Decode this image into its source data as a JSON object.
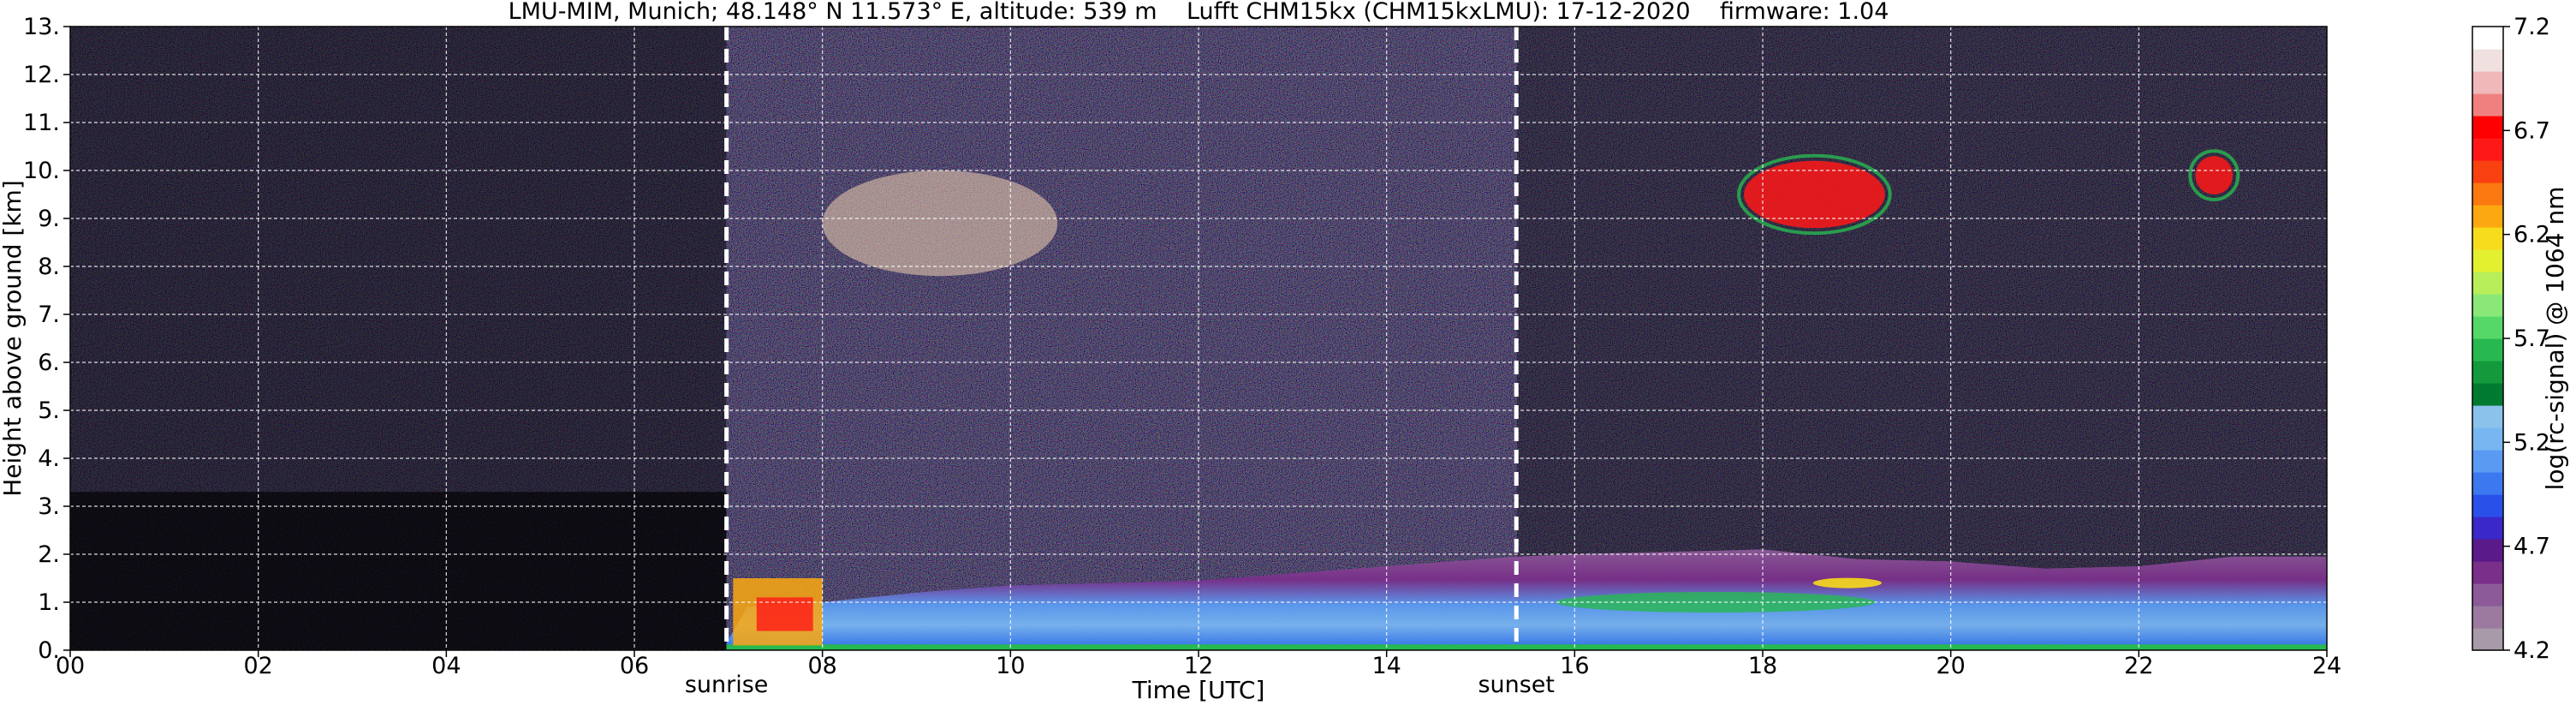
{
  "chart_data": {
    "type": "heatmap",
    "title": "LMU-MIM, Munich; 48.148° N 11.573° E, altitude: 539 m    Lufft CHM15kx (CHM15kxLMU): 17-12-2020    firmware: 1.04",
    "xlabel": "Time [UTC]",
    "ylabel": "Height above ground [km]",
    "xlim": [
      0,
      24
    ],
    "ylim": [
      0,
      13
    ],
    "x_ticks": [
      "00",
      "02",
      "04",
      "06",
      "08",
      "10",
      "12",
      "14",
      "16",
      "18",
      "20",
      "22",
      "24"
    ],
    "x_tick_values": [
      0,
      2,
      4,
      6,
      8,
      10,
      12,
      14,
      16,
      18,
      20,
      22,
      24
    ],
    "y_ticks": [
      "0.",
      "1.",
      "2.",
      "3.",
      "4.",
      "5.",
      "6.",
      "7.",
      "8.",
      "9.",
      "10.",
      "11.",
      "12.",
      "13."
    ],
    "y_tick_values": [
      0,
      1,
      2,
      3,
      4,
      5,
      6,
      7,
      8,
      9,
      10,
      11,
      12,
      13
    ],
    "grid": true,
    "background_color": "#000000",
    "grid_color": "#ffffff",
    "markers": [
      {
        "label": "sunrise",
        "x": 6.98
      },
      {
        "label": "sunset",
        "x": 15.38
      }
    ],
    "colorbar": {
      "label": "log(rc-signal) @ 1064 nm",
      "range": [
        4.2,
        7.2
      ],
      "tick_labels": [
        "4.2",
        "4.7",
        "5.2",
        "5.7",
        "6.2",
        "6.7",
        "7.2"
      ],
      "tick_values": [
        4.2,
        4.7,
        5.2,
        5.7,
        6.2,
        6.7,
        7.2
      ],
      "colors": [
        "#a89aa8",
        "#9c7aa0",
        "#8c5a98",
        "#7a2f8a",
        "#5a1a8a",
        "#3a28c8",
        "#2a50ea",
        "#3c78f0",
        "#5a9af2",
        "#78b6f2",
        "#8ac2ec",
        "#007a30",
        "#149a3c",
        "#28b850",
        "#56d868",
        "#8ae878",
        "#b8ee5a",
        "#e2f030",
        "#f6dc1c",
        "#fca810",
        "#fc7810",
        "#f84010",
        "#ff1818",
        "#ff0000",
        "#f08080",
        "#f0b8b8",
        "#f0e0e0",
        "#ffffff"
      ]
    },
    "features": [
      {
        "name": "boundary layer",
        "x_range": [
          6.98,
          24
        ],
        "y_range": [
          0,
          2.2
        ]
      },
      {
        "name": "cirrus cloud",
        "x_range": [
          8,
          10.5
        ],
        "y_range": [
          7.8,
          10
        ]
      },
      {
        "name": "cirrus cloud",
        "x_range": [
          17.8,
          19.3
        ],
        "y_range": [
          8.8,
          10.2
        ]
      },
      {
        "name": "cirrus cloud",
        "x_range": [
          22.6,
          23
        ],
        "y_range": [
          9.5,
          10.3
        ]
      }
    ]
  }
}
